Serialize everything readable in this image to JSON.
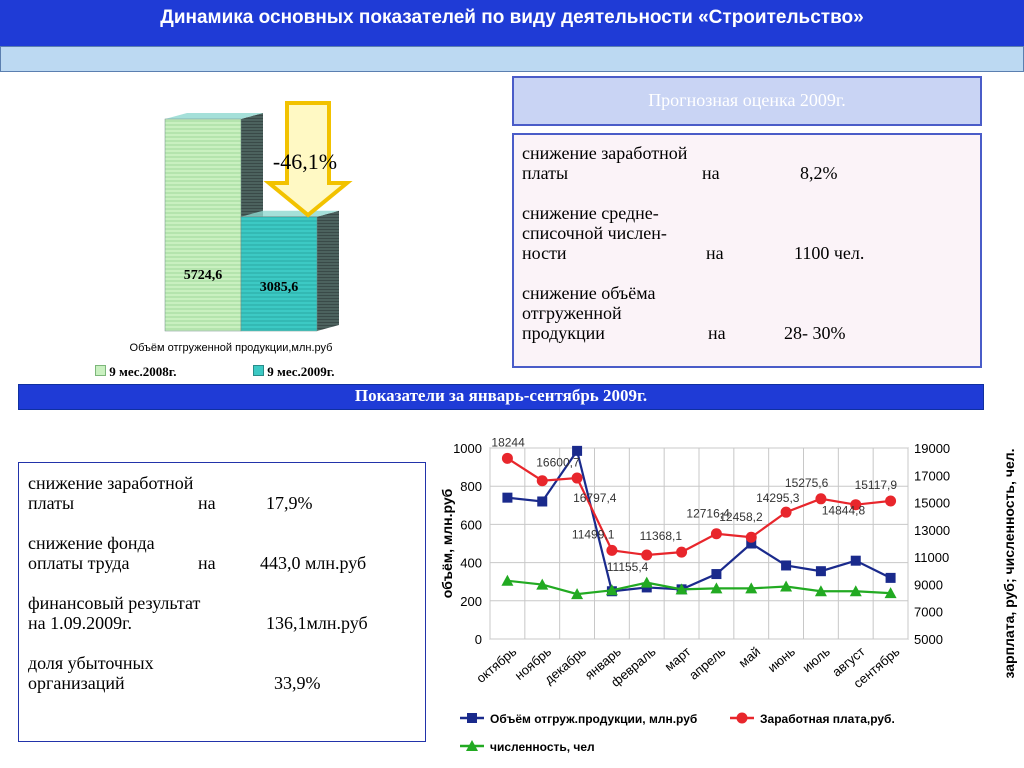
{
  "header": {
    "title": "Динамика основных показателей по виду деятельности «Строительство»"
  },
  "forecast": {
    "title": "Прогнозная оценка 2009г.",
    "items": [
      {
        "l1": "снижение заработной",
        "l2": "платы",
        "on": "на",
        "val": "8,2%"
      },
      {
        "l1": "снижение средне-",
        "l2": "списочной  числен-",
        "l3": "ности",
        "on": "на",
        "val": "1100 чел."
      },
      {
        "l1": "снижение объёма",
        "l2": "отгруженной",
        "l3": "продукции",
        "on": "на",
        "val": "28- 30%"
      }
    ]
  },
  "section_bar": {
    "title": "Показатели за январь-сентябрь 2009г."
  },
  "indicators": {
    "items": [
      {
        "l1": "снижение заработной",
        "l2": "платы",
        "on": "на",
        "val": "17,9%"
      },
      {
        "l1": "снижение фонда",
        "l2": "оплаты  труда",
        "on": "на",
        "val": "443,0 млн.руб"
      },
      {
        "l1": "финансовый результат",
        "l2": "на 1.09.2009г.",
        "val": "136,1млн.руб"
      },
      {
        "l1": "доля убыточных",
        "l2": "организаций",
        "val": "33,9%"
      }
    ]
  },
  "chart_data": [
    {
      "type": "bar",
      "title": "Объём отгруженной продукции,млн.руб",
      "categories": [
        "9 мес.2008г.",
        "9 мес.2009г."
      ],
      "values": [
        5724.6,
        3085.6
      ],
      "value_labels": [
        "5724,6",
        "3085,6"
      ],
      "annotation": "-46,1%",
      "colors": [
        "#c9f0c0",
        "#3cc9c4"
      ]
    },
    {
      "type": "line",
      "categories": [
        "октябрь",
        "ноябрь",
        "декабрь",
        "январь",
        "февраль",
        "март",
        "апрель",
        "май",
        "июнь",
        "июль",
        "август",
        "сентябрь"
      ],
      "ylabel": "объём, млн.руб",
      "y2label": "зарплата, руб; численность, чел.",
      "ylim": [
        0,
        1000
      ],
      "y2lim": [
        5000,
        19000
      ],
      "yticks": [
        "0",
        "200",
        "400",
        "600",
        "800",
        "1000"
      ],
      "y2ticks": [
        "5000",
        "7000",
        "9000",
        "11000",
        "13000",
        "15000",
        "17000",
        "19000"
      ],
      "series": [
        {
          "name": "Объём отгруж.продукции, млн.руб",
          "axis": "left",
          "color": "#1a2a8c",
          "marker": "square",
          "values": [
            740,
            720,
            985,
            250,
            270,
            260,
            340,
            500,
            385,
            355,
            410,
            320
          ]
        },
        {
          "name": "Заработная плата,руб.",
          "axis": "right",
          "color": "#e8262c",
          "marker": "circle",
          "values": [
            18244,
            16600.7,
            16797.4,
            11499.1,
            11155.4,
            11368.1,
            12716.4,
            12458.2,
            14295.3,
            15275.6,
            14844.8,
            15117.9
          ],
          "labels": [
            "18244",
            "16600,7",
            "16797,4",
            "11499,1",
            "11155,4",
            "11368,1",
            "12716,4",
            "12458,2",
            "14295,3",
            "15275,6",
            "14844,8",
            "15117,9"
          ]
        },
        {
          "name": "численность, чел",
          "axis": "left",
          "color": "#22aa22",
          "marker": "triangle",
          "values": [
            305,
            285,
            235,
            255,
            295,
            260,
            265,
            265,
            275,
            250,
            250,
            240
          ]
        }
      ]
    }
  ]
}
